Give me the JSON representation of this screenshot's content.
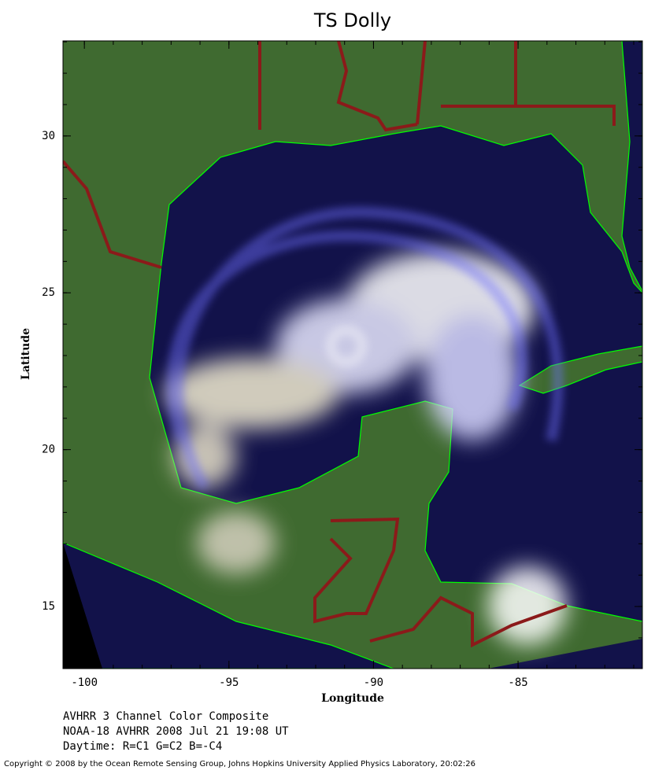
{
  "title": "TS Dolly",
  "map": {
    "xlabel": "Longitude",
    "ylabel": "Latitude",
    "xlim": [
      -100.74,
      -80.7
    ],
    "ylim": [
      13.02,
      33.03
    ],
    "xticks": [
      -100,
      -95,
      -90,
      -85
    ],
    "yticks": [
      15,
      20,
      25,
      30
    ]
  },
  "caption": [
    "AVHRR 3 Channel Color Composite",
    "NOAA-18 AVHRR 2008 Jul 21 19:08 UT",
    "Daytime: R=C1 G=C2 B=-C4"
  ],
  "copyright": "Copyright © 2008 by the Ocean Remote Sensing Group, Johns Hopkins University Applied Physics Laboratory, 20:02:26"
}
